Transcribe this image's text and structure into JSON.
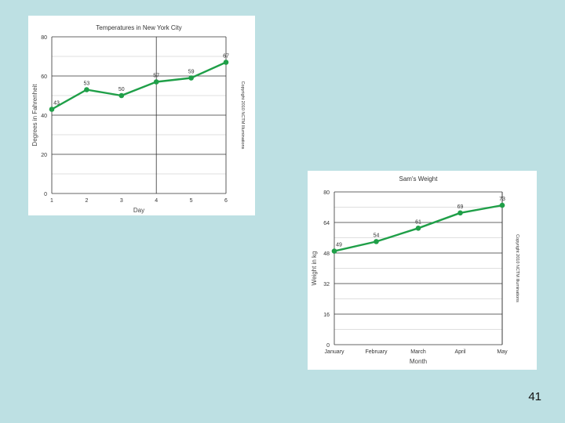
{
  "slide": {
    "number": "41"
  },
  "colors": {
    "background": "#bde0e3",
    "series": "#1f9f48",
    "card": "#ffffff"
  },
  "chart_data": [
    {
      "type": "line",
      "title": "Temperatures in New York City",
      "xlabel": "Day",
      "ylabel": "Degrees in Fahrenheit",
      "x": [
        "1",
        "2",
        "3",
        "4",
        "5",
        "6"
      ],
      "series": [
        {
          "values": [
            43,
            53,
            50,
            57,
            59,
            67
          ]
        }
      ],
      "ylim": [
        0,
        80
      ],
      "yticks": [
        0,
        20,
        40,
        60,
        80
      ],
      "grid": true,
      "side_note": "Copyright 2010 NCTM Illuminations"
    },
    {
      "type": "line",
      "title": "Sam's Weight",
      "xlabel": "Month",
      "ylabel": "Weight in kg",
      "x": [
        "January",
        "February",
        "March",
        "April",
        "May"
      ],
      "series": [
        {
          "values": [
            49,
            54,
            61,
            69,
            73
          ]
        }
      ],
      "ylim": [
        0,
        80
      ],
      "yticks": [
        0,
        16,
        32,
        48,
        64,
        80
      ],
      "grid": true,
      "side_note": "Copyright 2010 NCTM Illuminations"
    }
  ]
}
